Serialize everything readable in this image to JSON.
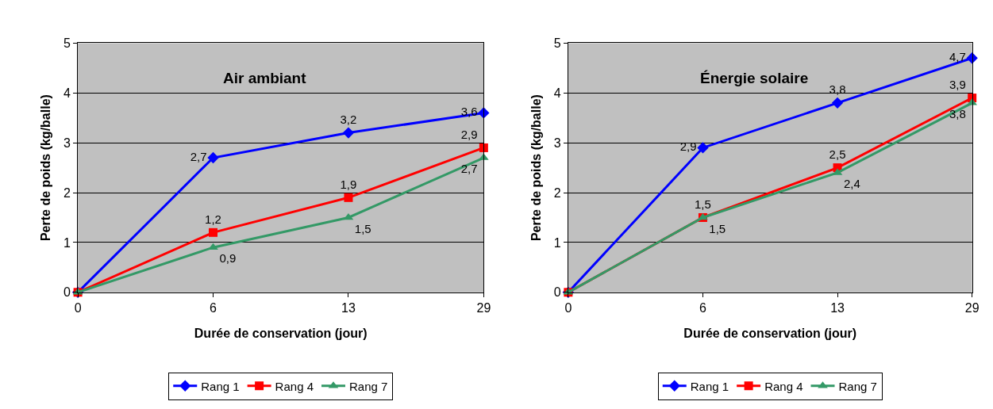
{
  "chart_data": [
    {
      "type": "line",
      "title": "Air ambiant",
      "xlabel": "Durée de conservation (jour)",
      "ylabel": "Perte de poids (kg/balle)",
      "categories": [
        "0",
        "6",
        "13",
        "29"
      ],
      "ylim": [
        0,
        5
      ],
      "yticks": [
        0,
        1,
        2,
        3,
        4,
        5
      ],
      "grid": "y",
      "legend": "bottom",
      "line_style": "solid",
      "series": [
        {
          "name": "Rang 1",
          "color": "#0000ff",
          "marker": "diamond",
          "values": [
            0,
            2.7,
            3.2,
            3.6
          ],
          "value_labels": [
            null,
            "2,7",
            "3,2",
            "3,6"
          ]
        },
        {
          "name": "Rang 4",
          "color": "#ff0000",
          "marker": "square",
          "values": [
            0,
            1.2,
            1.9,
            2.9
          ],
          "value_labels": [
            null,
            "1,2",
            "1,9",
            "2,9"
          ]
        },
        {
          "name": "Rang 7",
          "color": "#339966",
          "marker": "triangle",
          "values": [
            0,
            0.9,
            1.5,
            2.7
          ],
          "value_labels": [
            null,
            "0,9",
            "1,5",
            "2,7"
          ]
        }
      ]
    },
    {
      "type": "line",
      "title": "Énergie solaire",
      "xlabel": "Durée de conservation (jour)",
      "ylabel": "Perte de poids (kg/balle)",
      "categories": [
        "0",
        "6",
        "13",
        "29"
      ],
      "ylim": [
        0,
        5
      ],
      "yticks": [
        0,
        1,
        2,
        3,
        4,
        5
      ],
      "grid": "y",
      "legend": "bottom",
      "line_style": "solid",
      "series": [
        {
          "name": "Rang 1",
          "color": "#0000ff",
          "marker": "diamond",
          "values": [
            0,
            2.9,
            3.8,
            4.7
          ],
          "value_labels": [
            null,
            "2,9",
            "3,8",
            "4,7"
          ]
        },
        {
          "name": "Rang 4",
          "color": "#ff0000",
          "marker": "square",
          "values": [
            0,
            1.5,
            2.5,
            3.9
          ],
          "value_labels": [
            null,
            "1,5",
            "2,5",
            "3,9"
          ]
        },
        {
          "name": "Rang 7",
          "color": "#339966",
          "marker": "triangle",
          "values": [
            0,
            1.5,
            2.4,
            3.8
          ],
          "value_labels": [
            null,
            "1,5",
            "2,4",
            "3,8"
          ]
        }
      ]
    }
  ]
}
